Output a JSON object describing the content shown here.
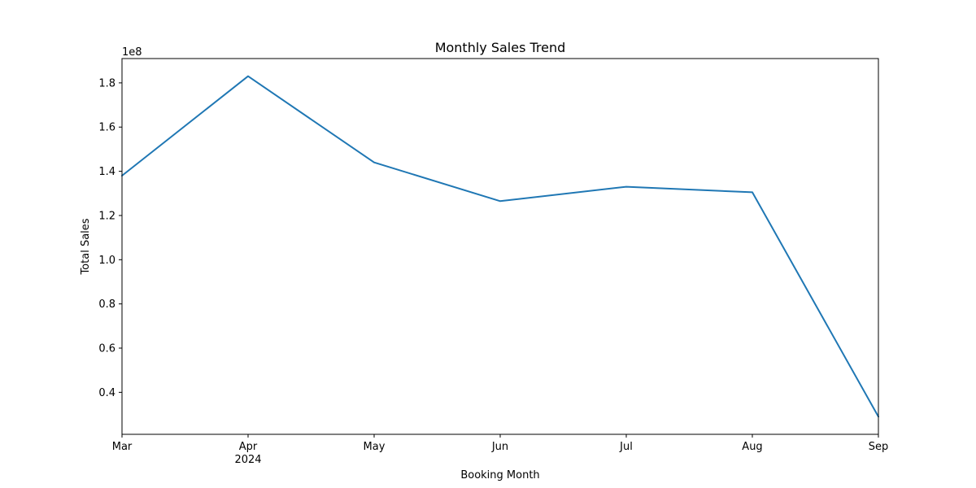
{
  "chart_data": {
    "type": "line",
    "title": "Monthly Sales Trend",
    "xlabel": "Booking Month",
    "ylabel": "Total Sales",
    "y_offset_label": "1e8",
    "x_ticks": [
      "Mar",
      "Apr",
      "May",
      "Jun",
      "Jul",
      "Aug",
      "Sep"
    ],
    "x_year_label": "2024",
    "x_year_under": "Apr",
    "y_ticks": [
      "0.4",
      "0.6",
      "0.8",
      "1.0",
      "1.2",
      "1.4",
      "1.6",
      "1.8"
    ],
    "y_tick_values": [
      0.4,
      0.6,
      0.8,
      1.0,
      1.2,
      1.4,
      1.6,
      1.8
    ],
    "ylim": [
      0.21,
      1.91
    ],
    "grid": false,
    "legend": "none",
    "series": [
      {
        "color": "#1f77b4",
        "x": [
          "2024-03",
          "2024-04",
          "2024-05",
          "2024-06",
          "2024-07",
          "2024-08",
          "2024-09"
        ],
        "values": [
          1.38,
          1.83,
          1.44,
          1.265,
          1.33,
          1.305,
          0.29
        ]
      }
    ]
  }
}
